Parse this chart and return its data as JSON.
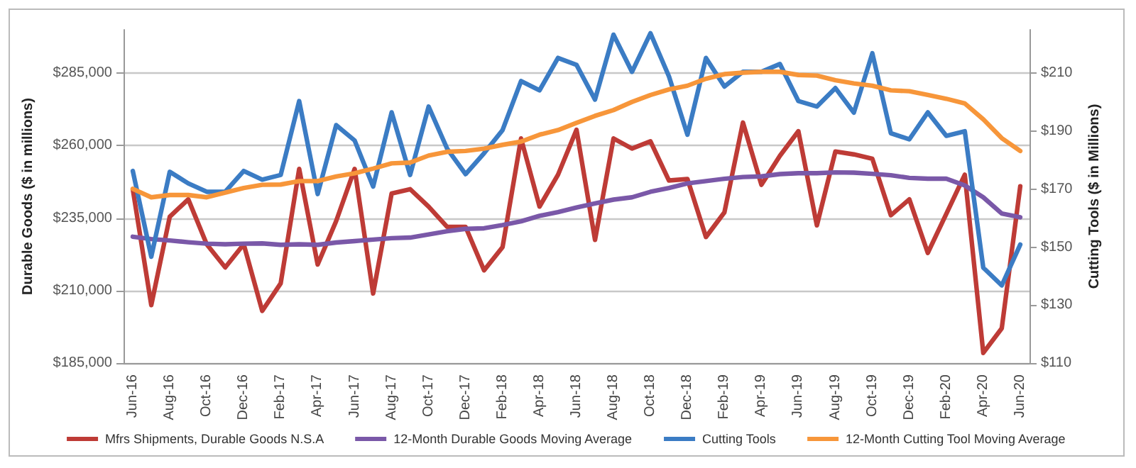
{
  "chart_data": {
    "type": "line",
    "ylabel": "Durable Goods ($ in millions)",
    "y2label": "Cutting Tools ($ in Millions)",
    "categories": [
      "Jun-16",
      null,
      "Aug-16",
      null,
      "Oct-16",
      null,
      "Dec-16",
      null,
      "Feb-17",
      null,
      "Apr-17",
      null,
      "Jun-17",
      null,
      "Aug-17",
      null,
      "Oct-17",
      null,
      "Dec-17",
      null,
      "Feb-18",
      null,
      "Apr-18",
      null,
      "Jun-18",
      null,
      "Aug-18",
      null,
      "Oct-18",
      null,
      "Dec-18",
      null,
      "Feb-19",
      null,
      "Apr-19",
      null,
      "Jun-19",
      null,
      "Aug-19",
      null,
      "Oct-19",
      null,
      "Dec-19",
      null,
      "Feb-20",
      null,
      "Apr-20",
      null,
      "Jun-20"
    ],
    "series": [
      {
        "name": "Mfrs Shipments, Durable Goods N.S.A",
        "color": "#be3b36",
        "values": [
          245000,
          205000,
          235500,
          241500,
          226000,
          218000,
          226000,
          203000,
          212500,
          252000,
          219000,
          234000,
          252000,
          209000,
          243500,
          245000,
          239000,
          232000,
          232000,
          217000,
          225000,
          262500,
          239000,
          250000,
          265500,
          227500,
          262500,
          259000,
          261500,
          248000,
          248500,
          228500,
          237000,
          268000,
          246500,
          256500,
          265000,
          232500,
          258000,
          257000,
          255500,
          236000,
          241500,
          223000,
          236500,
          250000,
          188500,
          197000,
          246000
        ]
      },
      {
        "name": "12-Month Durable Goods Moving Average",
        "color": "#7a58a8",
        "values": [
          228600,
          227800,
          227300,
          226700,
          226200,
          226000,
          226200,
          226300,
          225800,
          226000,
          225800,
          226600,
          227100,
          227600,
          228100,
          228300,
          229400,
          230500,
          231300,
          231500,
          232600,
          233900,
          235800,
          237100,
          238700,
          240100,
          241400,
          242200,
          244100,
          245400,
          247000,
          247800,
          248600,
          249200,
          249400,
          250200,
          250500,
          250500,
          250800,
          250700,
          250300,
          249800,
          248900,
          248600,
          248600,
          246300,
          242200,
          236600,
          235300
        ]
      },
      {
        "name": "Cutting Tools",
        "color": "#3b7cc4",
        "axis": "y2",
        "values": [
          176.3,
          146.7,
          176,
          172,
          169.1,
          169.1,
          176.3,
          173.3,
          174.9,
          200.4,
          168.3,
          192.1,
          186.8,
          170.9,
          196.5,
          174.9,
          198.5,
          184,
          175.2,
          182.4,
          190.4,
          207.3,
          204.1,
          215.3,
          212.9,
          200.9,
          223.3,
          210.5,
          223.8,
          208.9,
          188.8,
          215.3,
          205.4,
          210.5,
          210.5,
          213.2,
          200.4,
          198.5,
          204.9,
          196.4,
          216.9,
          189.3,
          187.2,
          196.5,
          188.4,
          190,
          142.9,
          136.8,
          150.9
        ]
      },
      {
        "name": "12-Month Cutting Tool Moving Average",
        "color": "#f7963a",
        "axis": "y2",
        "values": [
          170.1,
          167.2,
          168,
          168,
          167.2,
          168.8,
          170.4,
          171.5,
          171.6,
          172.8,
          172.8,
          174.4,
          175.5,
          177.1,
          178.9,
          179.2,
          181.6,
          182.9,
          183.2,
          184,
          185.3,
          186.4,
          188.8,
          190.4,
          192.9,
          195.3,
          197.3,
          200.1,
          202.5,
          204.4,
          205.7,
          208.1,
          209.7,
          210.2,
          210.5,
          210.5,
          209.4,
          209.2,
          207.6,
          206.5,
          205.7,
          204.1,
          203.8,
          202.5,
          201.2,
          199.6,
          194.1,
          187.6,
          183.2
        ]
      }
    ],
    "ylim": [
      185000,
      300000
    ],
    "yticks": [
      {
        "value": 185000,
        "label": "$185,000"
      },
      {
        "value": 210000,
        "label": "$210,000"
      },
      {
        "value": 235000,
        "label": "$235,000"
      },
      {
        "value": 260000,
        "label": "$260,000"
      },
      {
        "value": 285000,
        "label": "$285,000"
      }
    ],
    "y2lim": [
      110,
      225
    ],
    "y2ticks": [
      {
        "value": 110,
        "label": "$110"
      },
      {
        "value": 130,
        "label": "$130"
      },
      {
        "value": 150,
        "label": "$150"
      },
      {
        "value": 170,
        "label": "$170"
      },
      {
        "value": 190,
        "label": "$190"
      },
      {
        "value": 210,
        "label": "$210"
      }
    ],
    "grid": "y",
    "legend": "bottom",
    "marker": "none",
    "line_style": "solid"
  }
}
